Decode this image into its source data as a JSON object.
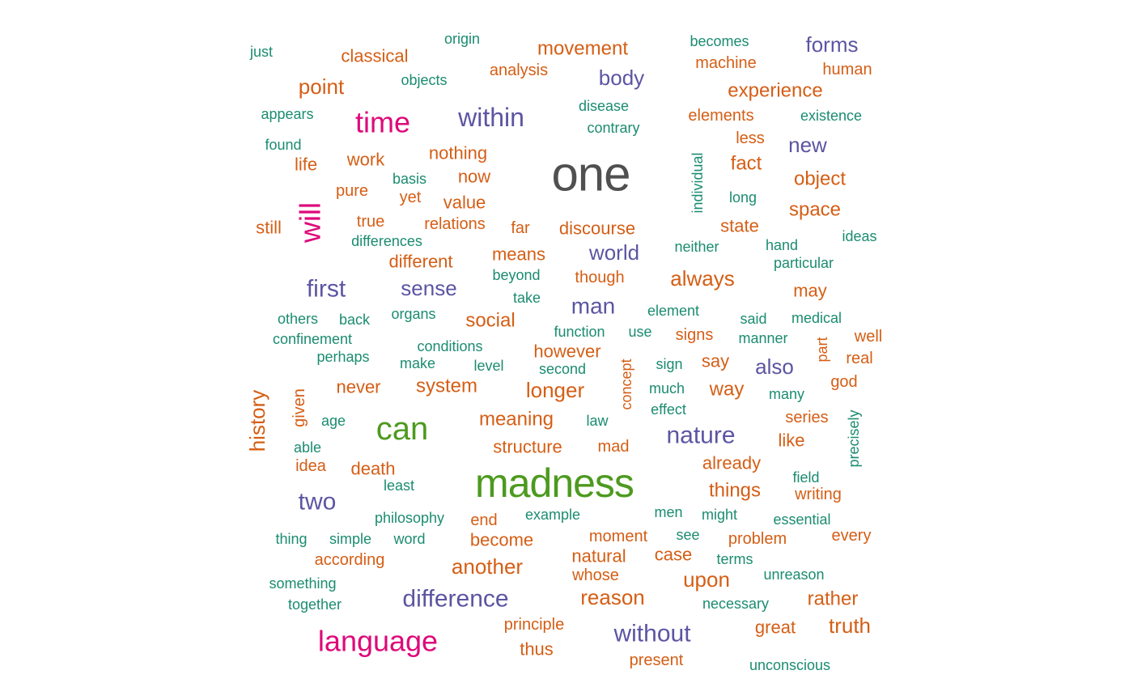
{
  "chart_data": {
    "type": "wordcloud",
    "colors": {
      "gray": "#505050",
      "green": "#4d9a1f",
      "magenta": "#dd0a7a",
      "purple": "#5c55a2",
      "orange": "#d55e15",
      "teal": "#1b8c70"
    },
    "words": [
      {
        "word": "one",
        "size": 60,
        "color": "gray"
      },
      {
        "word": "madness",
        "size": 50,
        "color": "green"
      },
      {
        "word": "can",
        "size": 40,
        "color": "green"
      },
      {
        "word": "time",
        "size": 36,
        "color": "magenta"
      },
      {
        "word": "will",
        "size": 36,
        "color": "magenta",
        "rotate": true
      },
      {
        "word": "language",
        "size": 36,
        "color": "magenta"
      },
      {
        "word": "within",
        "size": 32,
        "color": "purple"
      },
      {
        "word": "first",
        "size": 30,
        "color": "purple"
      },
      {
        "word": "difference",
        "size": 30,
        "color": "purple"
      },
      {
        "word": "nature",
        "size": 30,
        "color": "purple"
      },
      {
        "word": "without",
        "size": 30,
        "color": "purple"
      },
      {
        "word": "two",
        "size": 30,
        "color": "purple"
      },
      {
        "word": "man",
        "size": 28,
        "color": "purple"
      },
      {
        "word": "sense",
        "size": 26,
        "color": "purple"
      },
      {
        "word": "world",
        "size": 26,
        "color": "purple"
      },
      {
        "word": "also",
        "size": 26,
        "color": "purple"
      },
      {
        "word": "body",
        "size": 26,
        "color": "purple"
      },
      {
        "word": "forms",
        "size": 26,
        "color": "purple"
      },
      {
        "word": "new",
        "size": 26,
        "color": "purple"
      },
      {
        "word": "history",
        "size": 26,
        "color": "orange",
        "rotate": true
      },
      {
        "word": "another",
        "size": 26,
        "color": "orange"
      },
      {
        "word": "reason",
        "size": 26,
        "color": "orange"
      },
      {
        "word": "truth",
        "size": 26,
        "color": "orange"
      },
      {
        "word": "point",
        "size": 26,
        "color": "orange"
      },
      {
        "word": "always",
        "size": 26,
        "color": "orange"
      },
      {
        "word": "longer",
        "size": 26,
        "color": "orange"
      },
      {
        "word": "upon",
        "size": 26,
        "color": "orange"
      },
      {
        "word": "movement",
        "size": 24,
        "color": "orange"
      },
      {
        "word": "experience",
        "size": 24,
        "color": "orange"
      },
      {
        "word": "fact",
        "size": 24,
        "color": "orange"
      },
      {
        "word": "object",
        "size": 24,
        "color": "orange"
      },
      {
        "word": "space",
        "size": 24,
        "color": "orange"
      },
      {
        "word": "social",
        "size": 24,
        "color": "orange"
      },
      {
        "word": "system",
        "size": 24,
        "color": "orange"
      },
      {
        "word": "meaning",
        "size": 24,
        "color": "orange"
      },
      {
        "word": "way",
        "size": 24,
        "color": "orange"
      },
      {
        "word": "things",
        "size": 24,
        "color": "orange"
      },
      {
        "word": "rather",
        "size": 24,
        "color": "orange"
      },
      {
        "word": "classical",
        "size": 22,
        "color": "orange"
      },
      {
        "word": "life",
        "size": 22,
        "color": "orange"
      },
      {
        "word": "now",
        "size": 22,
        "color": "orange"
      },
      {
        "word": "nothing",
        "size": 22,
        "color": "orange"
      },
      {
        "word": "different",
        "size": 22,
        "color": "orange"
      },
      {
        "word": "means",
        "size": 22,
        "color": "orange"
      },
      {
        "word": "structure",
        "size": 22,
        "color": "orange"
      },
      {
        "word": "may",
        "size": 22,
        "color": "orange"
      },
      {
        "word": "like",
        "size": 22,
        "color": "orange"
      },
      {
        "word": "never",
        "size": 22,
        "color": "orange"
      },
      {
        "word": "death",
        "size": 22,
        "color": "orange"
      },
      {
        "word": "thus",
        "size": 22,
        "color": "orange"
      },
      {
        "word": "great",
        "size": 22,
        "color": "orange"
      },
      {
        "word": "discourse",
        "size": 22,
        "color": "orange"
      },
      {
        "word": "work",
        "size": 22,
        "color": "orange"
      },
      {
        "word": "value",
        "size": 22,
        "color": "orange"
      },
      {
        "word": "still",
        "size": 22,
        "color": "orange"
      },
      {
        "word": "already",
        "size": 22,
        "color": "orange"
      },
      {
        "word": "however",
        "size": 22,
        "color": "orange"
      },
      {
        "word": "become",
        "size": 22,
        "color": "orange"
      },
      {
        "word": "natural",
        "size": 22,
        "color": "orange"
      },
      {
        "word": "case",
        "size": 22,
        "color": "orange"
      },
      {
        "word": "state",
        "size": 22,
        "color": "orange"
      },
      {
        "word": "say",
        "size": 22,
        "color": "orange"
      },
      {
        "word": "analysis",
        "size": 20,
        "color": "orange"
      },
      {
        "word": "machine",
        "size": 20,
        "color": "orange"
      },
      {
        "word": "human",
        "size": 20,
        "color": "orange"
      },
      {
        "word": "elements",
        "size": 20,
        "color": "orange"
      },
      {
        "word": "less",
        "size": 20,
        "color": "orange"
      },
      {
        "word": "pure",
        "size": 20,
        "color": "orange"
      },
      {
        "word": "yet",
        "size": 20,
        "color": "orange"
      },
      {
        "word": "true",
        "size": 20,
        "color": "orange"
      },
      {
        "word": "relations",
        "size": 20,
        "color": "orange"
      },
      {
        "word": "far",
        "size": 20,
        "color": "orange"
      },
      {
        "word": "though",
        "size": 20,
        "color": "orange"
      },
      {
        "word": "signs",
        "size": 20,
        "color": "orange"
      },
      {
        "word": "well",
        "size": 20,
        "color": "orange"
      },
      {
        "word": "real",
        "size": 20,
        "color": "orange"
      },
      {
        "word": "god",
        "size": 20,
        "color": "orange"
      },
      {
        "word": "series",
        "size": 20,
        "color": "orange"
      },
      {
        "word": "writing",
        "size": 20,
        "color": "orange"
      },
      {
        "word": "every",
        "size": 20,
        "color": "orange"
      },
      {
        "word": "problem",
        "size": 20,
        "color": "orange"
      },
      {
        "word": "moment",
        "size": 20,
        "color": "orange"
      },
      {
        "word": "whose",
        "size": 20,
        "color": "orange"
      },
      {
        "word": "principle",
        "size": 20,
        "color": "orange"
      },
      {
        "word": "present",
        "size": 20,
        "color": "orange"
      },
      {
        "word": "according",
        "size": 20,
        "color": "orange"
      },
      {
        "word": "idea",
        "size": 20,
        "color": "orange"
      },
      {
        "word": "mad",
        "size": 20,
        "color": "orange"
      },
      {
        "word": "end",
        "size": 20,
        "color": "orange"
      },
      {
        "word": "given",
        "size": 20,
        "color": "orange",
        "rotate": true
      },
      {
        "word": "concept",
        "size": 18,
        "color": "orange",
        "rotate": true
      },
      {
        "word": "part",
        "size": 18,
        "color": "orange",
        "rotate": true
      },
      {
        "word": "just",
        "size": 18,
        "color": "teal"
      },
      {
        "word": "origin",
        "size": 18,
        "color": "teal"
      },
      {
        "word": "becomes",
        "size": 18,
        "color": "teal"
      },
      {
        "word": "objects",
        "size": 18,
        "color": "teal"
      },
      {
        "word": "appears",
        "size": 18,
        "color": "teal"
      },
      {
        "word": "disease",
        "size": 18,
        "color": "teal"
      },
      {
        "word": "contrary",
        "size": 18,
        "color": "teal"
      },
      {
        "word": "existence",
        "size": 18,
        "color": "teal"
      },
      {
        "word": "found",
        "size": 18,
        "color": "teal"
      },
      {
        "word": "basis",
        "size": 18,
        "color": "teal"
      },
      {
        "word": "individual",
        "size": 18,
        "color": "teal",
        "rotate": true
      },
      {
        "word": "long",
        "size": 18,
        "color": "teal"
      },
      {
        "word": "differences",
        "size": 18,
        "color": "teal"
      },
      {
        "word": "neither",
        "size": 18,
        "color": "teal"
      },
      {
        "word": "hand",
        "size": 18,
        "color": "teal"
      },
      {
        "word": "ideas",
        "size": 18,
        "color": "teal"
      },
      {
        "word": "particular",
        "size": 18,
        "color": "teal"
      },
      {
        "word": "beyond",
        "size": 18,
        "color": "teal"
      },
      {
        "word": "take",
        "size": 18,
        "color": "teal"
      },
      {
        "word": "others",
        "size": 18,
        "color": "teal"
      },
      {
        "word": "back",
        "size": 18,
        "color": "teal"
      },
      {
        "word": "organs",
        "size": 18,
        "color": "teal"
      },
      {
        "word": "element",
        "size": 18,
        "color": "teal"
      },
      {
        "word": "said",
        "size": 18,
        "color": "teal"
      },
      {
        "word": "medical",
        "size": 18,
        "color": "teal"
      },
      {
        "word": "confinement",
        "size": 18,
        "color": "teal"
      },
      {
        "word": "conditions",
        "size": 18,
        "color": "teal"
      },
      {
        "word": "function",
        "size": 18,
        "color": "teal"
      },
      {
        "word": "use",
        "size": 18,
        "color": "teal"
      },
      {
        "word": "manner",
        "size": 18,
        "color": "teal"
      },
      {
        "word": "perhaps",
        "size": 18,
        "color": "teal"
      },
      {
        "word": "make",
        "size": 18,
        "color": "teal"
      },
      {
        "word": "level",
        "size": 18,
        "color": "teal"
      },
      {
        "word": "second",
        "size": 18,
        "color": "teal"
      },
      {
        "word": "sign",
        "size": 18,
        "color": "teal"
      },
      {
        "word": "much",
        "size": 18,
        "color": "teal"
      },
      {
        "word": "effect",
        "size": 18,
        "color": "teal"
      },
      {
        "word": "many",
        "size": 18,
        "color": "teal"
      },
      {
        "word": "age",
        "size": 18,
        "color": "teal"
      },
      {
        "word": "law",
        "size": 18,
        "color": "teal"
      },
      {
        "word": "able",
        "size": 18,
        "color": "teal"
      },
      {
        "word": "field",
        "size": 18,
        "color": "teal"
      },
      {
        "word": "precisely",
        "size": 18,
        "color": "teal",
        "rotate": true
      },
      {
        "word": "least",
        "size": 18,
        "color": "teal"
      },
      {
        "word": "philosophy",
        "size": 18,
        "color": "teal"
      },
      {
        "word": "example",
        "size": 18,
        "color": "teal"
      },
      {
        "word": "men",
        "size": 18,
        "color": "teal"
      },
      {
        "word": "might",
        "size": 18,
        "color": "teal"
      },
      {
        "word": "essential",
        "size": 18,
        "color": "teal"
      },
      {
        "word": "thing",
        "size": 18,
        "color": "teal"
      },
      {
        "word": "simple",
        "size": 18,
        "color": "teal"
      },
      {
        "word": "word",
        "size": 18,
        "color": "teal"
      },
      {
        "word": "see",
        "size": 18,
        "color": "teal"
      },
      {
        "word": "terms",
        "size": 18,
        "color": "teal"
      },
      {
        "word": "something",
        "size": 18,
        "color": "teal"
      },
      {
        "word": "unreason",
        "size": 18,
        "color": "teal"
      },
      {
        "word": "together",
        "size": 18,
        "color": "teal"
      },
      {
        "word": "necessary",
        "size": 18,
        "color": "teal"
      },
      {
        "word": "unconscious",
        "size": 18,
        "color": "teal"
      }
    ]
  }
}
